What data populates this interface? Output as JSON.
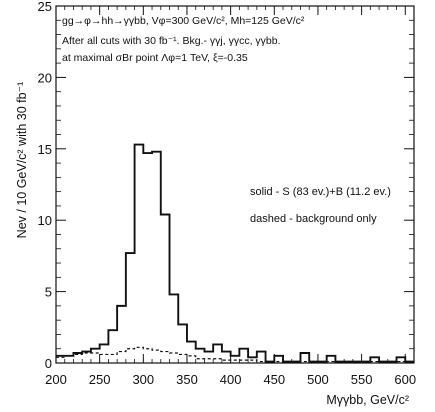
{
  "chart_data": {
    "type": "histogram",
    "xlabel": "Mγγbb, GeV/c²",
    "ylabel": "Nev / 10 GeV/c² with 30 fb⁻¹",
    "xlim": [
      200,
      610
    ],
    "ylim": [
      0,
      25
    ],
    "xticks": [
      200,
      250,
      300,
      350,
      400,
      450,
      500,
      550,
      600
    ],
    "yticks": [
      0,
      5,
      10,
      15,
      20,
      25
    ],
    "bin_width": 10,
    "grid": false,
    "annotations": [
      "gg→φ→hh→γγbb, Vφ=300 GeV/c², Mh=125 GeV/c²",
      "After all cuts with 30 fb⁻¹. Bkg.- γγj, γγcc, γγbb.",
      "at maximal σBr point Λφ=1 TeV, ξ=-0.35"
    ],
    "legend": [
      "solid - S (83 ev.)+B (11.2 ev.)",
      "dashed - background only"
    ],
    "series": [
      {
        "name": "S+B",
        "style": "solid",
        "bin_edges": [
          200,
          210,
          220,
          230,
          240,
          250,
          260,
          270,
          280,
          290,
          300,
          310,
          320,
          330,
          340,
          350,
          360,
          370,
          380,
          390,
          400,
          410,
          420,
          430,
          440,
          450,
          460,
          470,
          480,
          490,
          500,
          510,
          520,
          530,
          540,
          550,
          560,
          570,
          580,
          590,
          600,
          610
        ],
        "values": [
          0.5,
          0.5,
          0.7,
          0.8,
          1.0,
          1.3,
          2.3,
          4.0,
          7.7,
          15.3,
          14.7,
          14.8,
          10.4,
          4.8,
          2.7,
          1.5,
          1.0,
          0.8,
          1.3,
          0.8,
          0.5,
          1.0,
          0.4,
          0.8,
          0.1,
          0.5,
          0.1,
          0.1,
          0.7,
          0.1,
          0.1,
          0.5,
          0.1,
          0.1,
          0.1,
          0.1,
          0.4,
          0.1,
          0.1,
          0.4,
          0.1
        ]
      },
      {
        "name": "background",
        "style": "dashed",
        "bin_edges": [
          200,
          210,
          220,
          230,
          240,
          250,
          260,
          270,
          280,
          290,
          300,
          310,
          320,
          330,
          340,
          350,
          360,
          370,
          380,
          390,
          400,
          410,
          420,
          430,
          440,
          450,
          460,
          470,
          480,
          490,
          500,
          510,
          520,
          530,
          540,
          550,
          560,
          570,
          580,
          590,
          600,
          610
        ],
        "values": [
          0.4,
          0.5,
          0.6,
          0.7,
          0.7,
          0.6,
          0.6,
          0.8,
          1.0,
          1.1,
          1.0,
          0.9,
          0.8,
          0.7,
          0.6,
          0.5,
          0.3,
          0.3,
          0.3,
          0.2,
          0.2,
          0.2,
          0.2,
          0.1,
          0.1,
          0.1,
          0.1,
          0.1,
          0.1,
          0.1,
          0.1,
          0.1,
          0.1,
          0.1,
          0.1,
          0.1,
          0.1,
          0.1,
          0.1,
          0.1,
          0.1
        ]
      }
    ]
  }
}
